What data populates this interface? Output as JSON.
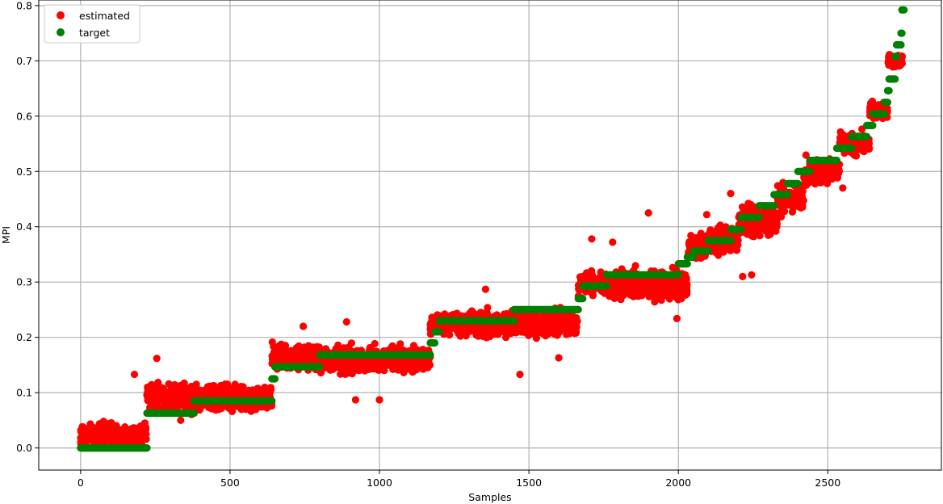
{
  "chart_data": {
    "type": "scatter",
    "title": "",
    "xlabel": "Samples",
    "ylabel": "MPI",
    "xlim": [
      -140,
      2880
    ],
    "ylim": [
      -0.04,
      0.81
    ],
    "xticks": [
      0,
      500,
      1000,
      1500,
      2000,
      2500
    ],
    "xtick_labels": [
      "0",
      "500",
      "1000",
      "1500",
      "2000",
      "2500"
    ],
    "yticks": [
      0.0,
      0.1,
      0.2,
      0.3,
      0.4,
      0.5,
      0.6,
      0.7,
      0.8
    ],
    "ytick_labels": [
      "0.0",
      "0.1",
      "0.2",
      "0.3",
      "0.4",
      "0.5",
      "0.6",
      "0.7",
      "0.8"
    ],
    "grid": true,
    "legend_position": "top-left",
    "series": [
      {
        "name": "estimated",
        "color": "#ff0000",
        "segments": [
          {
            "x": [
              0,
              220
            ],
            "y": 0.025,
            "spread": 0.03
          },
          {
            "x": [
              222,
              380
            ],
            "y": 0.09,
            "spread": 0.04
          },
          {
            "x": [
              380,
              640
            ],
            "y": 0.09,
            "spread": 0.035
          },
          {
            "x": [
              640,
              800
            ],
            "y": 0.165,
            "spread": 0.04
          },
          {
            "x": [
              800,
              1170
            ],
            "y": 0.16,
            "spread": 0.035
          },
          {
            "x": [
              1170,
              1450
            ],
            "y": 0.225,
            "spread": 0.035
          },
          {
            "x": [
              1450,
              1665
            ],
            "y": 0.225,
            "spread": 0.035
          },
          {
            "x": [
              1665,
              1760
            ],
            "y": 0.295,
            "spread": 0.035
          },
          {
            "x": [
              1760,
              2030
            ],
            "y": 0.295,
            "spread": 0.04
          },
          {
            "x": [
              2030,
              2100
            ],
            "y": 0.365,
            "spread": 0.035
          },
          {
            "x": [
              2100,
              2200
            ],
            "y": 0.375,
            "spread": 0.04
          },
          {
            "x": [
              2200,
              2330
            ],
            "y": 0.41,
            "spread": 0.045
          },
          {
            "x": [
              2330,
              2420
            ],
            "y": 0.45,
            "spread": 0.04
          },
          {
            "x": [
              2420,
              2540
            ],
            "y": 0.5,
            "spread": 0.035
          },
          {
            "x": [
              2540,
              2640
            ],
            "y": 0.55,
            "spread": 0.03
          },
          {
            "x": [
              2640,
              2700
            ],
            "y": 0.61,
            "spread": 0.025
          },
          {
            "x": [
              2700,
              2750
            ],
            "y": 0.7,
            "spread": 0.02
          }
        ],
        "outliers": [
          {
            "x": 180,
            "y": 0.133
          },
          {
            "x": 255,
            "y": 0.162
          },
          {
            "x": 335,
            "y": 0.05
          },
          {
            "x": 745,
            "y": 0.22
          },
          {
            "x": 890,
            "y": 0.228
          },
          {
            "x": 920,
            "y": 0.087
          },
          {
            "x": 1000,
            "y": 0.087
          },
          {
            "x": 1355,
            "y": 0.287
          },
          {
            "x": 1470,
            "y": 0.133
          },
          {
            "x": 1600,
            "y": 0.163
          },
          {
            "x": 1710,
            "y": 0.378
          },
          {
            "x": 1780,
            "y": 0.372
          },
          {
            "x": 1900,
            "y": 0.425
          },
          {
            "x": 1995,
            "y": 0.234
          },
          {
            "x": 2095,
            "y": 0.422
          },
          {
            "x": 2175,
            "y": 0.46
          },
          {
            "x": 2215,
            "y": 0.31
          },
          {
            "x": 2245,
            "y": 0.313
          },
          {
            "x": 2350,
            "y": 0.48
          },
          {
            "x": 2610,
            "y": 0.54
          },
          {
            "x": 2550,
            "y": 0.47
          }
        ]
      },
      {
        "name": "target",
        "color": "#008000",
        "steps": [
          {
            "x": [
              0,
              222
            ],
            "y": 0.0
          },
          {
            "x": [
              222,
              380
            ],
            "y": 0.063
          },
          {
            "x": [
              380,
              640
            ],
            "y": 0.085
          },
          {
            "x": [
              640,
              650
            ],
            "y": 0.125
          },
          {
            "x": [
              650,
              800
            ],
            "y": 0.147
          },
          {
            "x": [
              800,
              1170
            ],
            "y": 0.168
          },
          {
            "x": [
              1170,
              1185
            ],
            "y": 0.19
          },
          {
            "x": [
              1185,
              1200
            ],
            "y": 0.21
          },
          {
            "x": [
              1200,
              1450
            ],
            "y": 0.23
          },
          {
            "x": [
              1450,
              1665
            ],
            "y": 0.25
          },
          {
            "x": [
              1665,
              1680
            ],
            "y": 0.27
          },
          {
            "x": [
              1680,
              1760
            ],
            "y": 0.293
          },
          {
            "x": [
              1760,
              2000
            ],
            "y": 0.313
          },
          {
            "x": [
              2000,
              2030
            ],
            "y": 0.333
          },
          {
            "x": [
              2030,
              2050
            ],
            "y": 0.345
          },
          {
            "x": [
              2050,
              2100
            ],
            "y": 0.356
          },
          {
            "x": [
              2100,
              2175
            ],
            "y": 0.375
          },
          {
            "x": [
              2175,
              2210
            ],
            "y": 0.395
          },
          {
            "x": [
              2210,
              2270
            ],
            "y": 0.417
          },
          {
            "x": [
              2270,
              2320
            ],
            "y": 0.438
          },
          {
            "x": [
              2320,
              2365
            ],
            "y": 0.458
          },
          {
            "x": [
              2365,
              2400
            ],
            "y": 0.478
          },
          {
            "x": [
              2400,
              2440
            ],
            "y": 0.5
          },
          {
            "x": [
              2440,
              2530
            ],
            "y": 0.52
          },
          {
            "x": [
              2530,
              2580
            ],
            "y": 0.542
          },
          {
            "x": [
              2580,
              2630
            ],
            "y": 0.563
          },
          {
            "x": [
              2630,
              2650
            ],
            "y": 0.583
          },
          {
            "x": [
              2650,
              2690
            ],
            "y": 0.604
          },
          {
            "x": [
              2690,
              2700
            ],
            "y": 0.625
          },
          {
            "x": [
              2700,
              2705
            ],
            "y": 0.646
          },
          {
            "x": [
              2705,
              2725
            ],
            "y": 0.667
          },
          {
            "x": [
              2725,
              2730
            ],
            "y": 0.708
          },
          {
            "x": [
              2730,
              2745
            ],
            "y": 0.729
          },
          {
            "x": [
              2745,
              2748
            ],
            "y": 0.75
          },
          {
            "x": [
              2748,
              2755
            ],
            "y": 0.792
          }
        ]
      }
    ]
  }
}
